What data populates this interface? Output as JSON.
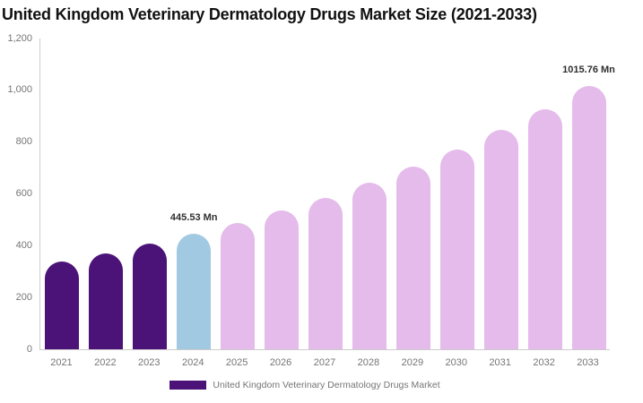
{
  "title": "United Kingdom Veterinary Dermatology Drugs Market Size (2021-2033)",
  "legend": {
    "label": "United Kingdom Veterinary Dermatology Drugs Market",
    "swatch_color": "#4B1278"
  },
  "colors": {
    "title_text": "#111111",
    "axis_text": "#757575",
    "axis_line": "#cccccc",
    "annotation_text": "#2f2f2f",
    "historical_bar": "#4B1278",
    "base_year_bar": "#A1C9E1",
    "forecast_bar": "#E4BBEA"
  },
  "chart_data": {
    "type": "bar",
    "title": "United Kingdom Veterinary Dermatology Drugs Market Size (2021-2033)",
    "unit": "Mn",
    "series_name": "United Kingdom Veterinary Dermatology Drugs Market",
    "categories": [
      "2021",
      "2022",
      "2023",
      "2024",
      "2025",
      "2026",
      "2027",
      "2028",
      "2029",
      "2030",
      "2031",
      "2032",
      "2033"
    ],
    "values": [
      339,
      371,
      407,
      445.53,
      488,
      535,
      586,
      643,
      704,
      772,
      846,
      927,
      1015.76
    ],
    "bar_colors": [
      "#4B1278",
      "#4B1278",
      "#4B1278",
      "#A1C9E1",
      "#E4BBEA",
      "#E4BBEA",
      "#E4BBEA",
      "#E4BBEA",
      "#E4BBEA",
      "#E4BBEA",
      "#E4BBEA",
      "#E4BBEA",
      "#E4BBEA"
    ],
    "ylim": [
      0,
      1200
    ],
    "yticks": [
      0,
      200,
      400,
      600,
      800,
      1000,
      1200
    ],
    "ytick_labels": [
      "0",
      "200",
      "400",
      "600",
      "800",
      "1,000",
      "1,200"
    ],
    "xlabel": "",
    "ylabel": "",
    "grid": false,
    "legend_position": "bottom",
    "annotations": [
      {
        "category": "2024",
        "text": "445.53 Mn"
      },
      {
        "category": "2033",
        "text": "1015.76 Mn"
      }
    ]
  }
}
